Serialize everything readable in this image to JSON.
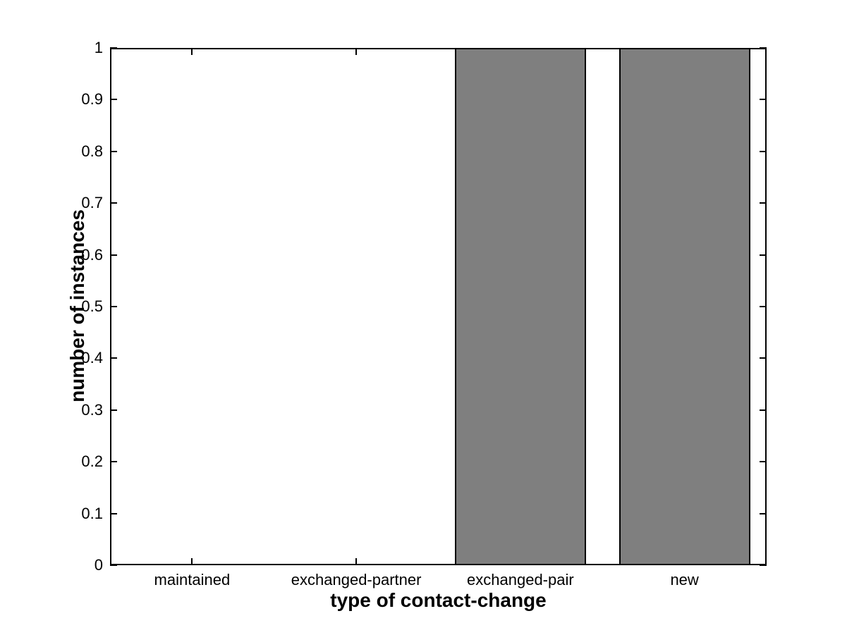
{
  "figure": {
    "background_color": "#ffffff",
    "axis_color": "#000000",
    "text_color": "#000000"
  },
  "chart_data": {
    "type": "bar",
    "title": "",
    "categories": [
      "maintained",
      "exchanged-partner",
      "exchanged-pair",
      "new"
    ],
    "values": [
      0,
      0,
      1,
      1
    ],
    "xlabel": "type of contact-change",
    "ylabel": "number of instances",
    "ylim": [
      0,
      1
    ],
    "xlim": [
      0.5,
      4.5
    ],
    "yticks": [
      0,
      0.1,
      0.2,
      0.3,
      0.4,
      0.5,
      0.6,
      0.7,
      0.8,
      0.9,
      1
    ],
    "ytick_labels": [
      "0",
      "0.1",
      "0.2",
      "0.3",
      "0.4",
      "0.5",
      "0.6",
      "0.7",
      "0.8",
      "0.9",
      "1"
    ],
    "bar_width_fraction": 0.8,
    "bar_fill_color": "#7f7f7f",
    "bar_edge_color": "#000000",
    "grid": false,
    "legend": "none",
    "tick_direction": "in",
    "box": true
  }
}
